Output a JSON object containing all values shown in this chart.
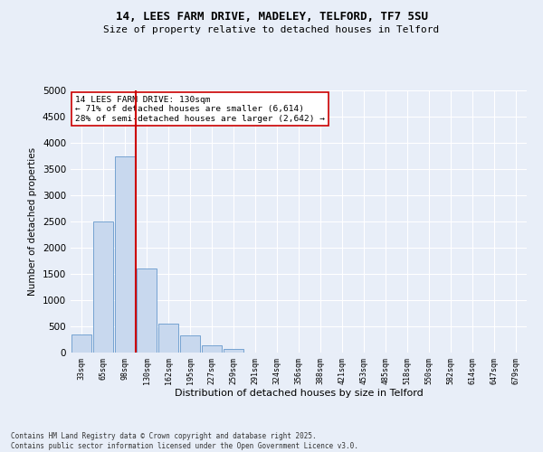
{
  "title_line1": "14, LEES FARM DRIVE, MADELEY, TELFORD, TF7 5SU",
  "title_line2": "Size of property relative to detached houses in Telford",
  "xlabel": "Distribution of detached houses by size in Telford",
  "ylabel": "Number of detached properties",
  "bar_color": "#c8d8ee",
  "bar_edge_color": "#6699cc",
  "vline_color": "#cc0000",
  "categories": [
    "33sqm",
    "65sqm",
    "98sqm",
    "130sqm",
    "162sqm",
    "195sqm",
    "227sqm",
    "259sqm",
    "291sqm",
    "324sqm",
    "356sqm",
    "388sqm",
    "421sqm",
    "453sqm",
    "485sqm",
    "518sqm",
    "550sqm",
    "582sqm",
    "614sqm",
    "647sqm",
    "679sqm"
  ],
  "values": [
    350,
    2500,
    3750,
    1600,
    550,
    320,
    130,
    70,
    0,
    0,
    0,
    0,
    0,
    0,
    0,
    0,
    0,
    0,
    0,
    0,
    0
  ],
  "ylim": [
    0,
    5000
  ],
  "yticks": [
    0,
    500,
    1000,
    1500,
    2000,
    2500,
    3000,
    3500,
    4000,
    4500,
    5000
  ],
  "vline_bar_index": 3,
  "annotation_text": "14 LEES FARM DRIVE: 130sqm\n← 71% of detached houses are smaller (6,614)\n28% of semi-detached houses are larger (2,642) →",
  "footer_line1": "Contains HM Land Registry data © Crown copyright and database right 2025.",
  "footer_line2": "Contains public sector information licensed under the Open Government Licence v3.0.",
  "bg_color": "#e8eef8",
  "grid_color": "white"
}
